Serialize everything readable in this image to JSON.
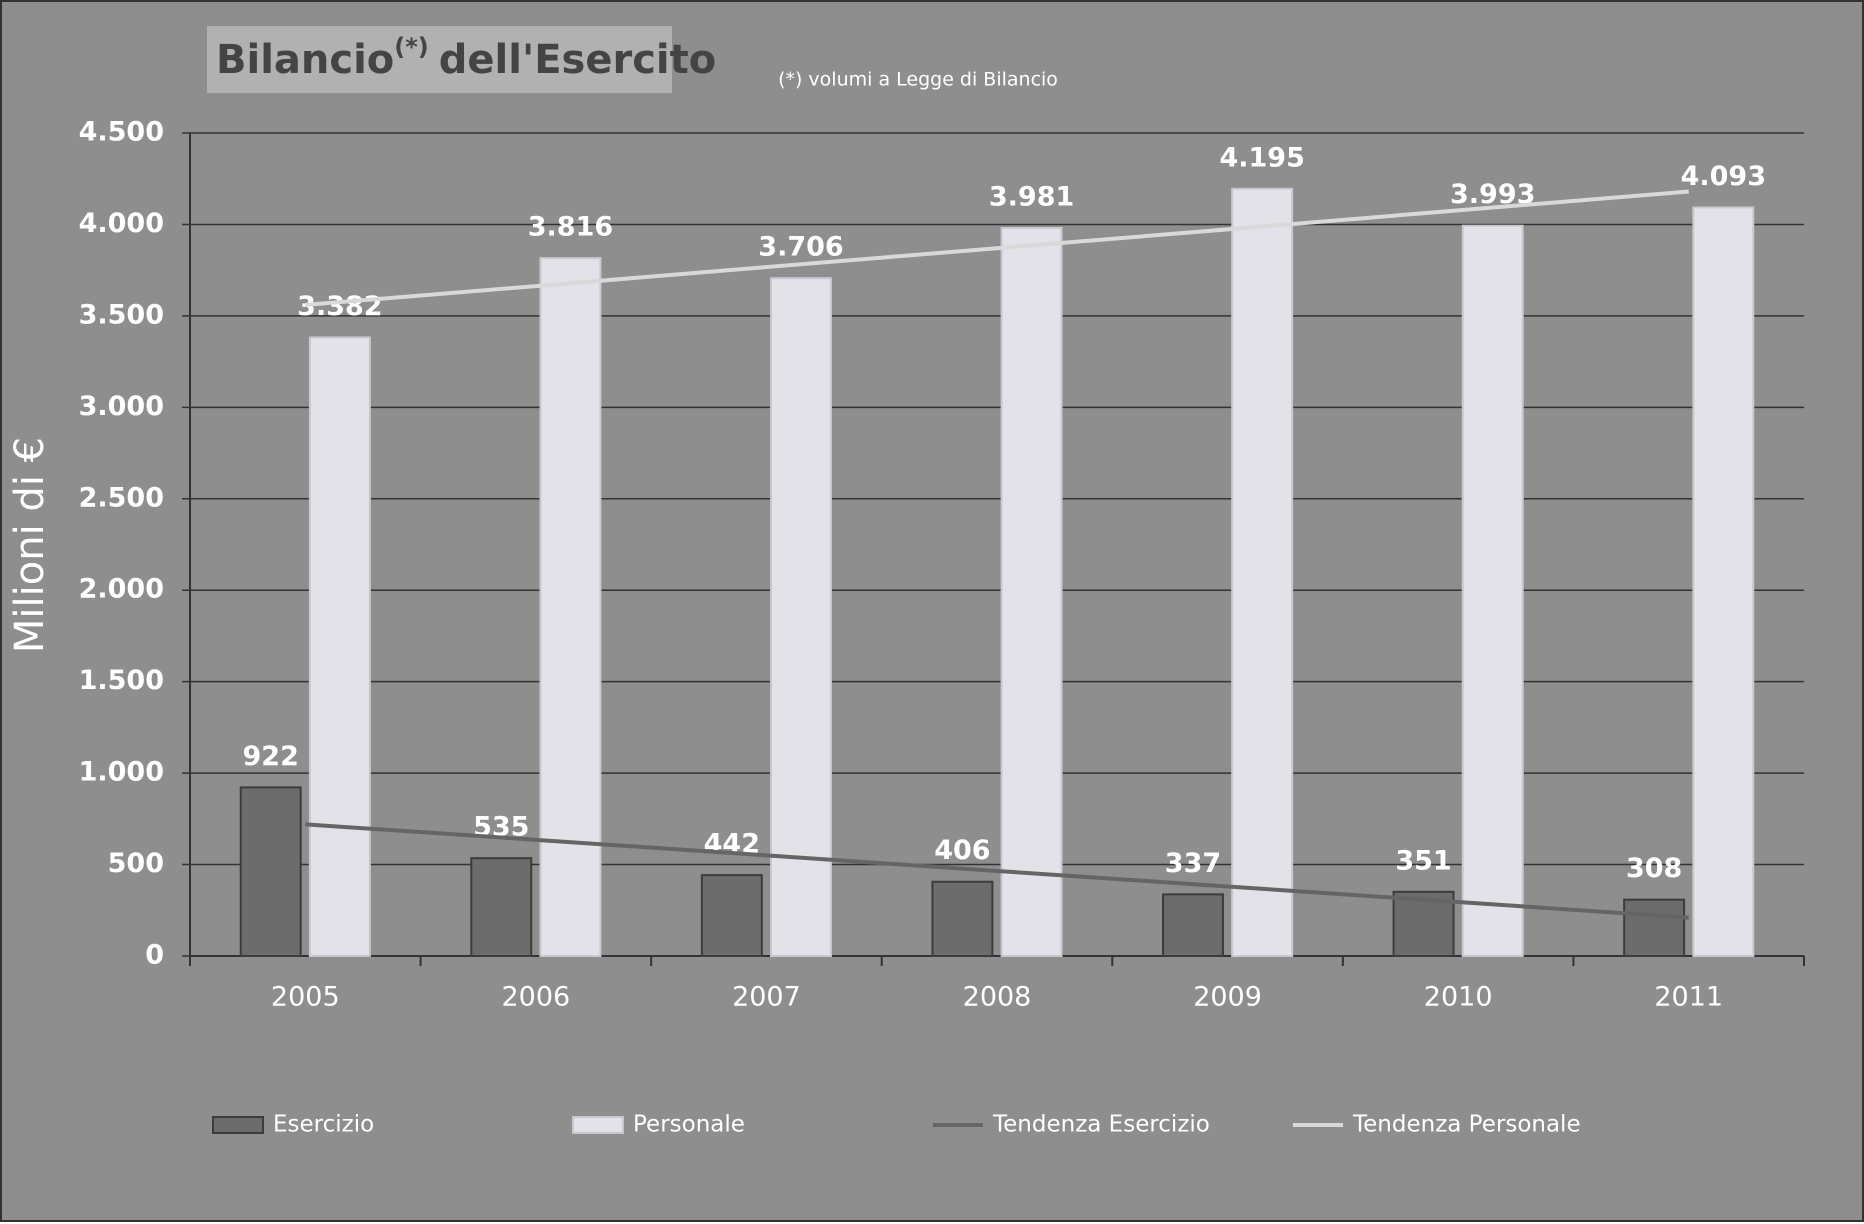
{
  "chart_data": {
    "type": "bar",
    "title": {
      "text": "Bilancio",
      "superscript": "(*)",
      "rest": "dell'Esercito"
    },
    "subtitle": "(*) volumi a Legge di Bilancio",
    "y_label": "Milioni di €",
    "categories": [
      "2005",
      "2006",
      "2007",
      "2008",
      "2009",
      "2010",
      "2011"
    ],
    "series": [
      {
        "name": "Esercizio",
        "type": "bar",
        "color": "#6c6c6c",
        "values": [
          922,
          535,
          442,
          406,
          337,
          351,
          308
        ],
        "value_labels": [
          "922",
          "535",
          "442",
          "406",
          "337",
          "351",
          "308"
        ]
      },
      {
        "name": "Personale",
        "type": "bar",
        "color": "#e2e2e8",
        "values": [
          3382,
          3816,
          3706,
          3981,
          4195,
          3993,
          4093
        ],
        "value_labels": [
          "3.382",
          "3.816",
          "3.706",
          "3.981",
          "4.195",
          "3.993",
          "4.093"
        ]
      },
      {
        "name": "Tendenza Esercizio",
        "type": "line",
        "color": "#656565",
        "values": [
          720,
          635,
          550,
          465,
          380,
          295,
          210
        ]
      },
      {
        "name": "Tendenza Personale",
        "type": "line",
        "color": "#d9d9d9",
        "values": [
          3560,
          3663,
          3767,
          3870,
          3973,
          4077,
          4180
        ]
      }
    ],
    "ylim": [
      0,
      4500
    ],
    "yticks": [
      0,
      500,
      {
        "value": 1000,
        "label": "1.000"
      },
      {
        "value": 1500,
        "label": "1.500"
      },
      {
        "value": 2000,
        "label": "2.000"
      },
      {
        "value": 2500,
        "label": "2.500"
      },
      {
        "value": 3000,
        "label": "3.000"
      },
      {
        "value": 3500,
        "label": "3.500"
      },
      {
        "value": 4000,
        "label": "4.000"
      },
      {
        "value": 4500,
        "label": "4.500"
      }
    ],
    "grid": true,
    "legend": "bottom"
  }
}
